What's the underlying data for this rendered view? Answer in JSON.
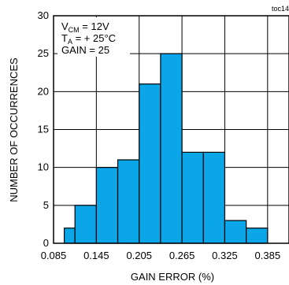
{
  "figure_id": "toc14",
  "chart_data": {
    "type": "bar",
    "bins": [
      {
        "start": 0.1,
        "end": 0.115,
        "value": 2
      },
      {
        "start": 0.115,
        "end": 0.145,
        "value": 5
      },
      {
        "start": 0.145,
        "end": 0.175,
        "value": 10
      },
      {
        "start": 0.175,
        "end": 0.205,
        "value": 11
      },
      {
        "start": 0.205,
        "end": 0.235,
        "value": 21
      },
      {
        "start": 0.235,
        "end": 0.265,
        "value": 25
      },
      {
        "start": 0.265,
        "end": 0.295,
        "value": 12
      },
      {
        "start": 0.295,
        "end": 0.325,
        "value": 12
      },
      {
        "start": 0.325,
        "end": 0.355,
        "value": 3
      },
      {
        "start": 0.355,
        "end": 0.385,
        "value": 2
      }
    ],
    "xlabel": "GAIN ERROR (%)",
    "ylabel": "NUMBER OF OCCURRENCES",
    "xlim": [
      0.085,
      0.415
    ],
    "ylim": [
      0,
      30
    ],
    "xticks": [
      "0.085",
      "0.145",
      "0.205",
      "0.265",
      "0.325",
      "0.385"
    ],
    "yticks": [
      "0",
      "5",
      "10",
      "15",
      "20",
      "25",
      "30"
    ],
    "grid": true,
    "bar_color": "#0aa6e8",
    "annotation": {
      "vcm": {
        "main": "V",
        "sub": "CM",
        "rest": " = 12V"
      },
      "ta": {
        "main": "T",
        "sub": "A",
        "rest": " = + 25°C"
      },
      "gain": "GAIN = 25"
    }
  }
}
